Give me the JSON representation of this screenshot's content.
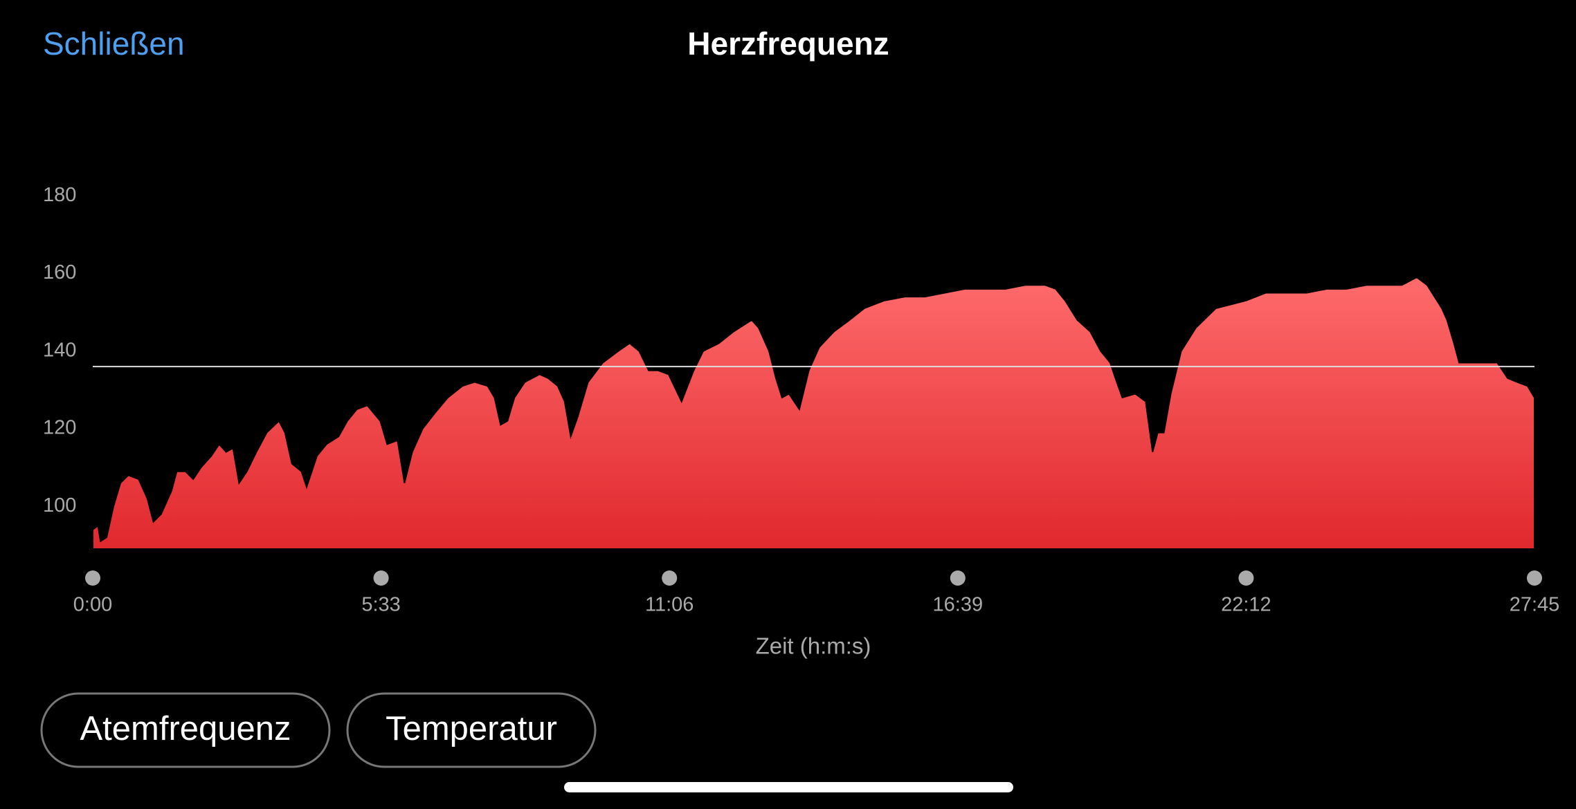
{
  "header": {
    "close": "Schließen"
  },
  "chart_data": {
    "type": "area",
    "title": "Herzfrequenz",
    "x_label": "Zeit (h:m:s)",
    "color": "#ff6b6b",
    "x": [
      0,
      6,
      9,
      16,
      24,
      32,
      41,
      53,
      63,
      70,
      79,
      91,
      97,
      107,
      116,
      125,
      137,
      146,
      154,
      162,
      169,
      178,
      189,
      201,
      215,
      222,
      230,
      241,
      247,
      259,
      270,
      284,
      294,
      305,
      317,
      332,
      340,
      352,
      360,
      369,
      381,
      395,
      410,
      427,
      441,
      456,
      464,
      471,
      479,
      487,
      499,
      516,
      526,
      537,
      545,
      552,
      560,
      572,
      589,
      607,
      620,
      631,
      642,
      653,
      665,
      680,
      694,
      705,
      723,
      740,
      761,
      769,
      781,
      789,
      796,
      804,
      816,
      827,
      839,
      856,
      874,
      891,
      914,
      938,
      961,
      984,
      1007,
      1030,
      1054,
      1077,
      1100,
      1112,
      1123,
      1137,
      1152,
      1164,
      1175,
      1181,
      1189,
      1204,
      1216,
      1224,
      1230,
      1237,
      1245,
      1257,
      1274,
      1297,
      1332,
      1355,
      1378,
      1402,
      1425,
      1448,
      1471,
      1494,
      1512,
      1529,
      1541,
      1558,
      1564,
      1572,
      1578,
      1587,
      1599,
      1622,
      1634,
      1645,
      1657,
      1665
    ],
    "values": [
      94,
      95,
      91,
      92,
      100,
      106,
      108,
      107,
      102,
      96,
      98,
      104,
      109,
      109,
      107,
      110,
      113,
      116,
      114,
      115,
      106,
      109,
      114,
      119,
      122,
      119,
      111,
      109,
      105,
      113,
      116,
      118,
      122,
      125,
      126,
      122,
      116,
      117,
      106,
      114,
      120,
      124,
      128,
      131,
      132,
      131,
      128,
      121,
      122,
      128,
      132,
      134,
      133,
      131,
      127,
      118,
      123,
      132,
      137,
      140,
      142,
      140,
      135,
      135,
      134,
      127,
      135,
      140,
      142,
      145,
      148,
      146,
      140,
      133,
      128,
      129,
      125,
      135,
      141,
      145,
      148,
      151,
      153,
      154,
      154,
      155,
      156,
      156,
      156,
      157,
      157,
      156,
      153,
      148,
      145,
      140,
      137,
      133,
      128,
      129,
      127,
      114,
      119,
      119,
      129,
      140,
      146,
      151,
      153,
      155,
      155,
      155,
      156,
      156,
      157,
      157,
      157,
      159,
      157,
      151,
      148,
      142,
      137,
      137,
      137,
      137,
      133,
      132,
      131,
      128
    ],
    "xlim": [
      0,
      1665
    ],
    "xticks": [
      {
        "value": 0,
        "label": "0:00"
      },
      {
        "value": 333,
        "label": "5:33"
      },
      {
        "value": 666,
        "label": "11:06"
      },
      {
        "value": 999,
        "label": "16:39"
      },
      {
        "value": 1332,
        "label": "22:12"
      },
      {
        "value": 1665,
        "label": "27:45"
      }
    ],
    "ylim": [
      89,
      190
    ],
    "yticks": [
      100,
      120,
      140,
      160,
      180
    ],
    "reference_line": 136
  },
  "buttons": [
    "Atemfrequenz",
    "Temperatur"
  ]
}
